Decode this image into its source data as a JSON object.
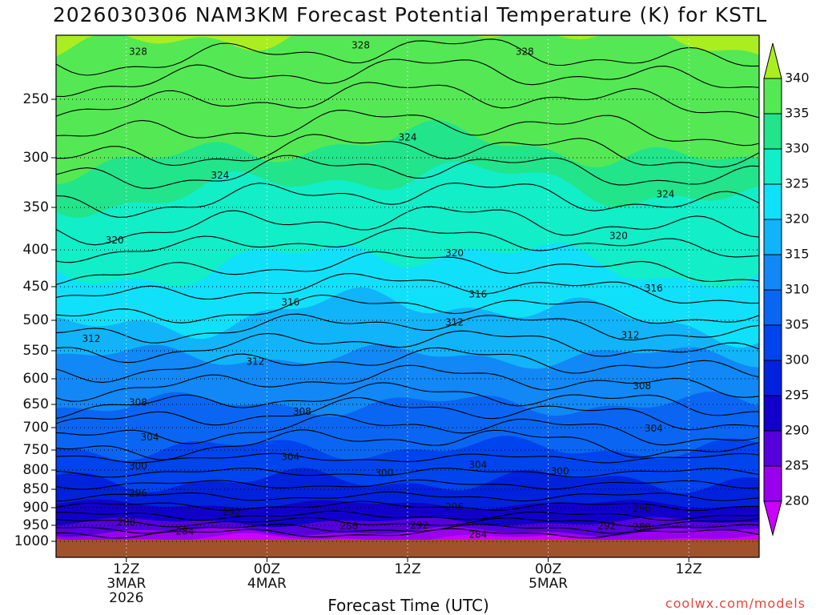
{
  "title": "2026030306 NAM3KM Forecast Potential Temperature (K) for KSTL",
  "xlabel": "Forecast Time (UTC)",
  "credit": "coolwx.com/models",
  "chart_data": {
    "type": "heatmap",
    "title": "2026030306 NAM3KM Forecast Potential Temperature (K) for KSTL",
    "xlabel": "Forecast Time (UTC)",
    "ylabel": "",
    "y_scale": "pressure (reversed)",
    "y_ticks": [
      250,
      300,
      350,
      400,
      450,
      500,
      550,
      600,
      650,
      700,
      750,
      800,
      850,
      900,
      950,
      1000
    ],
    "ylim": [
      1000,
      200
    ],
    "x_ticks": [
      {
        "label": "12Z",
        "sub": [
          "3MAR",
          "2026"
        ],
        "hour": 6
      },
      {
        "label": "00Z",
        "sub": [
          "4MAR"
        ],
        "hour": 18
      },
      {
        "label": "12Z",
        "sub": [],
        "hour": 30
      },
      {
        "label": "00Z",
        "sub": [
          "5MAR"
        ],
        "hour": 42
      },
      {
        "label": "12Z",
        "sub": [],
        "hour": 54
      }
    ],
    "xlim_hours": [
      0,
      60
    ],
    "grid": true,
    "colorbar": {
      "levels": [
        280,
        285,
        290,
        295,
        300,
        305,
        310,
        315,
        320,
        325,
        330,
        335,
        340
      ],
      "colors": [
        "#cc00ff",
        "#9900ee",
        "#5500dd",
        "#1100cc",
        "#0022dd",
        "#0044ee",
        "#0a66f2",
        "#1188f5",
        "#11b4f8",
        "#11e0fa",
        "#11eec8",
        "#22e48a",
        "#55e855",
        "#aaee22"
      ]
    },
    "contour_labels": [
      {
        "value": 328,
        "hour": 7,
        "p": 213
      },
      {
        "value": 328,
        "hour": 26,
        "p": 208
      },
      {
        "value": 328,
        "hour": 40,
        "p": 213
      },
      {
        "value": 324,
        "hour": 30,
        "p": 283
      },
      {
        "value": 324,
        "hour": 14,
        "p": 318
      },
      {
        "value": 324,
        "hour": 52,
        "p": 337
      },
      {
        "value": 320,
        "hour": 5,
        "p": 389
      },
      {
        "value": 320,
        "hour": 34,
        "p": 405
      },
      {
        "value": 320,
        "hour": 48,
        "p": 384
      },
      {
        "value": 316,
        "hour": 20,
        "p": 474
      },
      {
        "value": 316,
        "hour": 36,
        "p": 462
      },
      {
        "value": 316,
        "hour": 51,
        "p": 453
      },
      {
        "value": 312,
        "hour": 3,
        "p": 531
      },
      {
        "value": 312,
        "hour": 34,
        "p": 504
      },
      {
        "value": 312,
        "hour": 49,
        "p": 525
      },
      {
        "value": 312,
        "hour": 17,
        "p": 570
      },
      {
        "value": 308,
        "hour": 7,
        "p": 647
      },
      {
        "value": 308,
        "hour": 21,
        "p": 666
      },
      {
        "value": 308,
        "hour": 50,
        "p": 615
      },
      {
        "value": 304,
        "hour": 8,
        "p": 722
      },
      {
        "value": 304,
        "hour": 20,
        "p": 768
      },
      {
        "value": 304,
        "hour": 36,
        "p": 788
      },
      {
        "value": 304,
        "hour": 51,
        "p": 703
      },
      {
        "value": 300,
        "hour": 7,
        "p": 791
      },
      {
        "value": 300,
        "hour": 28,
        "p": 808
      },
      {
        "value": 300,
        "hour": 43,
        "p": 804
      },
      {
        "value": 296,
        "hour": 7,
        "p": 862
      },
      {
        "value": 296,
        "hour": 34,
        "p": 899
      },
      {
        "value": 296,
        "hour": 50,
        "p": 905
      },
      {
        "value": 292,
        "hour": 15,
        "p": 914
      },
      {
        "value": 292,
        "hour": 31,
        "p": 951
      },
      {
        "value": 292,
        "hour": 47,
        "p": 954
      },
      {
        "value": 288,
        "hour": 6,
        "p": 942
      },
      {
        "value": 288,
        "hour": 25,
        "p": 954
      },
      {
        "value": 288,
        "hour": 50,
        "p": 956
      },
      {
        "value": 284,
        "hour": 11,
        "p": 970
      },
      {
        "value": 284,
        "hour": 36,
        "p": 980
      }
    ]
  }
}
